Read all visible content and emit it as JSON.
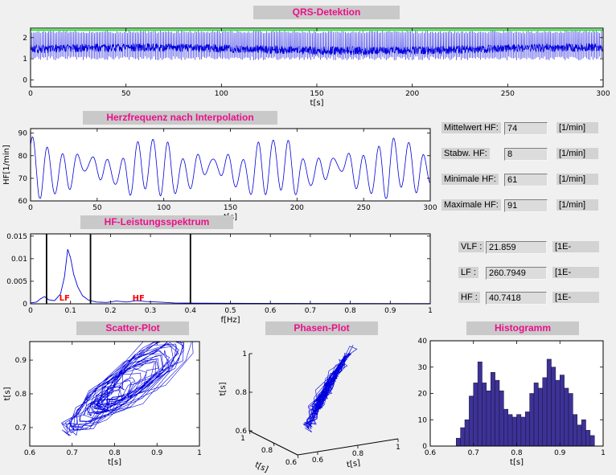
{
  "window": {
    "bg": "#f0f0f0",
    "title_bg": "#c9c9c9",
    "title_color": "#ec0f8b"
  },
  "stats": {
    "rows": [
      {
        "label": "Mittelwert HF:",
        "value": "74",
        "unit": "[1/min]"
      },
      {
        "label": "Stabw. HF:",
        "value": "8",
        "unit": "[1/min]"
      },
      {
        "label": "Minimale HF:",
        "value": "61",
        "unit": "[1/min]"
      },
      {
        "label": "Maximale HF:",
        "value": "91",
        "unit": "[1/min]"
      }
    ]
  },
  "power": {
    "rows": [
      {
        "label": "VLF :",
        "value": "21.859",
        "unit": "[1E-"
      },
      {
        "label": "LF :",
        "value": "260.7949",
        "unit": "[1E-"
      },
      {
        "label": "HF :",
        "value": "40.7418",
        "unit": "[1E-"
      }
    ]
  },
  "chart_data": {
    "qrs": {
      "type": "line",
      "title": "QRS-Detektion",
      "xlabel": "t[s]",
      "xlim": [
        0,
        300
      ],
      "xticks": [
        0,
        50,
        100,
        150,
        200,
        250,
        300
      ],
      "ylim": [
        -0.33,
        2.45
      ],
      "yticks": [
        0,
        1,
        2
      ],
      "threshold_line": 2.36,
      "colors": {
        "signal": "#0000dd",
        "threshold": "#00e400"
      },
      "description": "ECG trace with detected QRS spikes and green detection threshold line",
      "gen": {
        "beat_period_s": 0.81,
        "baseline": 1.45,
        "peak": 2.27,
        "trough": 1.02,
        "noise": 0.2,
        "seed": 7
      }
    },
    "hr": {
      "type": "line",
      "title": "Herzfrequenz nach Interpolation",
      "xlabel": "t[s]",
      "ylabel": "HF[1/min]",
      "xlim": [
        0,
        300
      ],
      "xticks": [
        0,
        50,
        100,
        150,
        200,
        250,
        300
      ],
      "ylim": [
        60,
        92
      ],
      "yticks": [
        60,
        70,
        80,
        90
      ],
      "color": "#0000dd",
      "gen": {
        "mean": 74,
        "min": 61,
        "max": 91,
        "period_s": 11.3
      }
    },
    "spectrum": {
      "type": "line",
      "title": "HF-Leistungsspektrum",
      "xlabel": "f[Hz]",
      "xlim": [
        0,
        1
      ],
      "xticks": [
        0,
        0.1,
        0.2,
        0.3,
        0.4,
        0.5,
        0.6,
        0.7,
        0.8,
        0.9,
        1
      ],
      "ylim": [
        0,
        0.0155
      ],
      "yticks": [
        0,
        0.005,
        0.01,
        0.015
      ],
      "curve": [
        [
          0,
          0.0002
        ],
        [
          0.015,
          0.0004
        ],
        [
          0.025,
          0.0011
        ],
        [
          0.035,
          0.0016
        ],
        [
          0.045,
          0.0009
        ],
        [
          0.06,
          0.0007
        ],
        [
          0.075,
          0.0022
        ],
        [
          0.085,
          0.006
        ],
        [
          0.093,
          0.0121
        ],
        [
          0.1,
          0.0102
        ],
        [
          0.108,
          0.0065
        ],
        [
          0.118,
          0.0038
        ],
        [
          0.13,
          0.0018
        ],
        [
          0.145,
          0.0008
        ],
        [
          0.165,
          0.0004
        ],
        [
          0.19,
          0.0003
        ],
        [
          0.215,
          0.0006
        ],
        [
          0.24,
          0.0004
        ],
        [
          0.265,
          0.0007
        ],
        [
          0.29,
          0.0005
        ],
        [
          0.32,
          0.0004
        ],
        [
          0.36,
          0.0002
        ],
        [
          0.42,
          0.00015
        ],
        [
          0.55,
          0.0001
        ],
        [
          0.75,
          8e-05
        ],
        [
          1,
          6e-05
        ]
      ],
      "band_lines": [
        0.04,
        0.15,
        0.4
      ],
      "band_labels": [
        {
          "text": "LF",
          "f": 0.085
        },
        {
          "text": "HF",
          "f": 0.27
        }
      ],
      "colors": {
        "curve": "#0000dd",
        "bands": "#000000",
        "band_labels": "#ff0000"
      }
    },
    "scatter": {
      "type": "line-scatter",
      "title": "Scatter-Plot",
      "xlabel": "t[s]",
      "ylabel": "t[s]",
      "xlim": [
        0.6,
        1
      ],
      "xticks": [
        0.6,
        0.7,
        0.8,
        0.9,
        1
      ],
      "ylim": [
        0.645,
        0.955
      ],
      "yticks": [
        0.7,
        0.8,
        0.9
      ],
      "color": "#0000dd",
      "gen": {
        "seed": 23,
        "jitter": 0.018
      }
    },
    "phase": {
      "type": "line3d",
      "title": "Phasen-Plot",
      "xlabel": "t[s]",
      "ylabel": "t[s]",
      "zlabel": "t[s]",
      "ticks": [
        0.6,
        0.8,
        1
      ],
      "color": "#0000dd"
    },
    "histogram": {
      "type": "bar",
      "title": "Histogramm",
      "xlabel": "t[s]",
      "xlim": [
        0.6,
        1
      ],
      "xticks": [
        0.6,
        0.7,
        0.8,
        0.9,
        1
      ],
      "ylim": [
        0,
        40
      ],
      "yticks": [
        0,
        10,
        20,
        30,
        40
      ],
      "bin_start": 0.66,
      "bin_width": 0.01,
      "values": [
        3,
        7,
        10,
        19,
        24,
        32,
        24,
        21,
        28,
        25,
        21,
        14,
        12,
        11,
        12,
        11,
        13,
        20,
        24,
        22,
        26,
        33,
        30,
        25,
        27,
        22,
        20,
        12,
        8,
        10,
        6,
        4
      ],
      "bar_color": "#3d3295"
    }
  }
}
